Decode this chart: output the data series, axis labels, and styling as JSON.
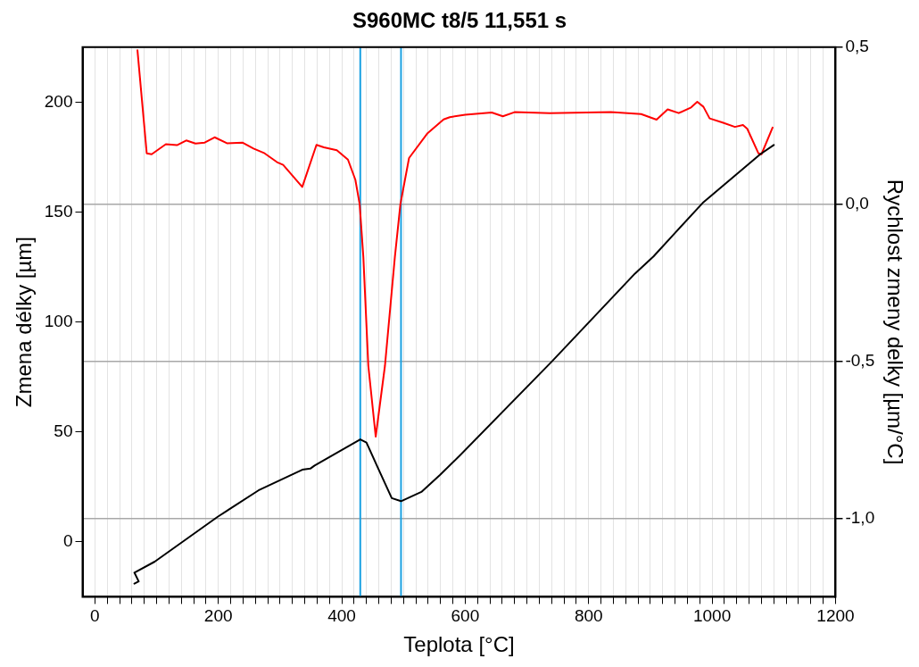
{
  "chart_data": {
    "type": "line",
    "title": "S960MC t8/5 11,551 s",
    "xlabel": "Teplota [°C]",
    "ylabel": "Zmena délky [µm]",
    "y2label": "Rychlost zmeny delky [µm/°C]",
    "series": [
      {
        "color": "#000000",
        "x": [
          64,
          71,
          64,
          97,
          199,
          265,
          336,
          349,
          356,
          430,
          440,
          458,
          481,
          496,
          529,
          559,
          590,
          740,
          875,
          905,
          935,
          986,
          1078,
          1100
        ],
        "values": [
          -19,
          -18,
          -14,
          -9,
          11.4,
          23.4,
          32.8,
          33.3,
          34.7,
          46.6,
          45.2,
          34,
          19.9,
          18.5,
          22.7,
          30.4,
          38.9,
          81.9,
          122,
          129.8,
          139,
          154.5,
          176.3,
          180.5
        ]
      },
      {
        "color": "#ff0000",
        "axis": "y2",
        "x": [
          69,
          84,
          92,
          115,
          133,
          148,
          163,
          178,
          194,
          214,
          239,
          257,
          275,
          295,
          305,
          336,
          359,
          371,
          392,
          410,
          422,
          429,
          435,
          443,
          455,
          470,
          486,
          495,
          509,
          539,
          565,
          575,
          600,
          643,
          661,
          680,
          737,
          836,
          885,
          910,
          928,
          946,
          966,
          976,
          986,
          996,
          1017,
          1037,
          1050,
          1057,
          1075,
          1080,
          1098
        ],
        "values": [
          0.49,
          0.162,
          0.159,
          0.191,
          0.188,
          0.203,
          0.193,
          0.196,
          0.213,
          0.194,
          0.196,
          0.177,
          0.162,
          0.134,
          0.125,
          0.055,
          0.189,
          0.181,
          0.172,
          0.142,
          0.078,
          0.0,
          -0.169,
          -0.514,
          -0.74,
          -0.514,
          -0.169,
          0.0,
          0.147,
          0.226,
          0.27,
          0.277,
          0.285,
          0.292,
          0.28,
          0.293,
          0.29,
          0.293,
          0.287,
          0.269,
          0.302,
          0.29,
          0.308,
          0.326,
          0.31,
          0.273,
          0.26,
          0.246,
          0.252,
          0.24,
          0.162,
          0.159,
          0.244
        ]
      }
    ],
    "xlim": [
      -20,
      1200
    ],
    "xticks": [
      0,
      {
        "value": 20,
        "label": null
      },
      {
        "value": 40,
        "label": null
      },
      {
        "value": 60,
        "label": null
      },
      {
        "value": 80,
        "label": null
      },
      {
        "value": 100,
        "label": null
      },
      {
        "value": 120,
        "label": null
      },
      {
        "value": 140,
        "label": null
      },
      {
        "value": 160,
        "label": null
      },
      {
        "value": 180,
        "label": null
      },
      200,
      {
        "value": 220,
        "label": null
      },
      {
        "value": 240,
        "label": null
      },
      {
        "value": 260,
        "label": null
      },
      {
        "value": 280,
        "label": null
      },
      {
        "value": 300,
        "label": null
      },
      {
        "value": 320,
        "label": null
      },
      {
        "value": 340,
        "label": null
      },
      {
        "value": 360,
        "label": null
      },
      {
        "value": 380,
        "label": null
      },
      400,
      {
        "value": 420,
        "label": null
      },
      {
        "value": 440,
        "label": null
      },
      {
        "value": 460,
        "label": null
      },
      {
        "value": 480,
        "label": null
      },
      {
        "value": 500,
        "label": null
      },
      {
        "value": 520,
        "label": null
      },
      {
        "value": 540,
        "label": null
      },
      {
        "value": 560,
        "label": null
      },
      {
        "value": 580,
        "label": null
      },
      600,
      {
        "value": 620,
        "label": null
      },
      {
        "value": 640,
        "label": null
      },
      {
        "value": 660,
        "label": null
      },
      {
        "value": 680,
        "label": null
      },
      {
        "value": 700,
        "label": null
      },
      {
        "value": 720,
        "label": null
      },
      {
        "value": 740,
        "label": null
      },
      {
        "value": 760,
        "label": null
      },
      {
        "value": 780,
        "label": null
      },
      800,
      {
        "value": 820,
        "label": null
      },
      {
        "value": 840,
        "label": null
      },
      {
        "value": 860,
        "label": null
      },
      {
        "value": 880,
        "label": null
      },
      {
        "value": 900,
        "label": null
      },
      {
        "value": 920,
        "label": null
      },
      {
        "value": 940,
        "label": null
      },
      {
        "value": 960,
        "label": null
      },
      {
        "value": 980,
        "label": null
      },
      1000,
      {
        "value": 1020,
        "label": null
      },
      {
        "value": 1040,
        "label": null
      },
      {
        "value": 1060,
        "label": null
      },
      {
        "value": 1080,
        "label": null
      },
      {
        "value": 1100,
        "label": null
      },
      {
        "value": 1120,
        "label": null
      },
      {
        "value": 1140,
        "label": null
      },
      {
        "value": 1160,
        "label": null
      },
      {
        "value": 1180,
        "label": null
      },
      1200
    ],
    "ylim": [
      -25,
      225
    ],
    "yticks": [
      0,
      50,
      100,
      150,
      200
    ],
    "y2lim": [
      -1.25,
      0.5
    ],
    "y2ticks": [
      {
        "value": -1.0,
        "label": "-1,0"
      },
      {
        "value": -0.5,
        "label": "-0,5"
      },
      {
        "value": 0.0,
        "label": "0,0"
      },
      {
        "value": 0.5,
        "label": "0,5"
      }
    ],
    "ref_lines": [
      {
        "axis": "x",
        "value": 430,
        "color": "#1ba1e2"
      },
      {
        "axis": "x",
        "value": 496,
        "color": "#1ba1e2"
      }
    ],
    "grid": true,
    "legend": false,
    "marker": "none",
    "line_style": "solid"
  }
}
